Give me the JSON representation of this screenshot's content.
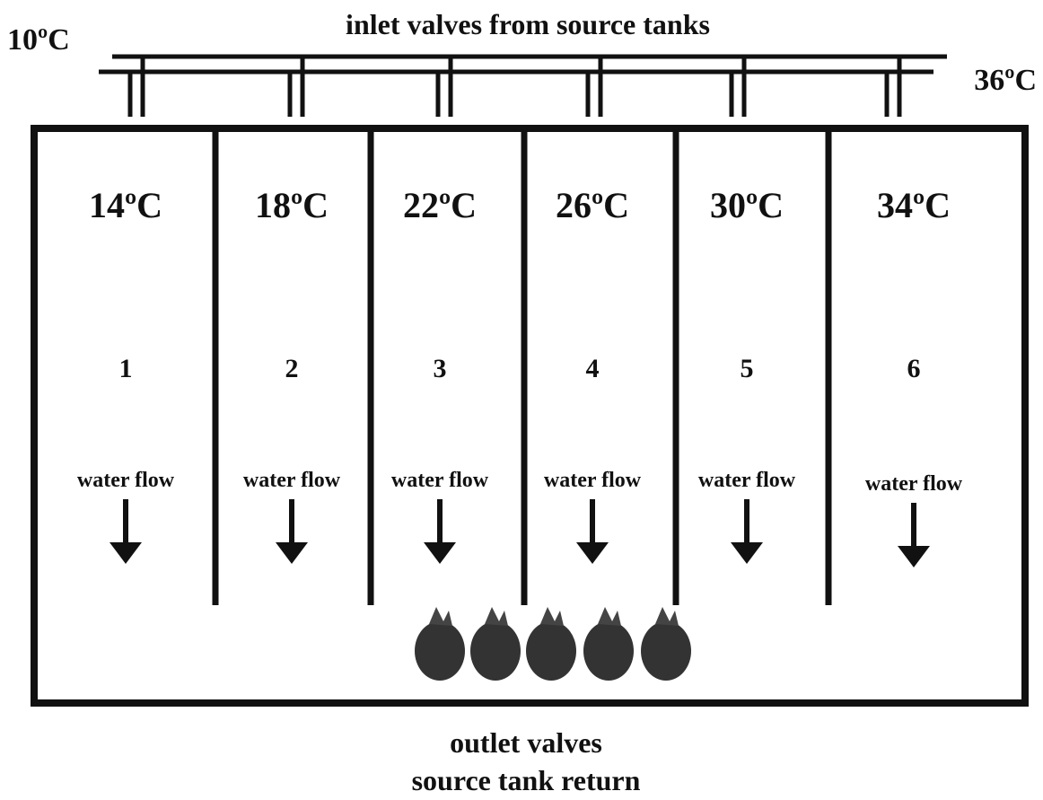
{
  "header": {
    "title": "inlet valves from source tanks",
    "left_temperature": "10ºC",
    "right_temperature": "36ºC"
  },
  "lanes": [
    {
      "temperature": "14ºC",
      "number": "1",
      "flow": "water flow"
    },
    {
      "temperature": "18ºC",
      "number": "2",
      "flow": "water flow"
    },
    {
      "temperature": "22ºC",
      "number": "3",
      "flow": "water flow"
    },
    {
      "temperature": "26ºC",
      "number": "4",
      "flow": "water flow"
    },
    {
      "temperature": "30ºC",
      "number": "5",
      "flow": "water flow"
    },
    {
      "temperature": "34ºC",
      "number": "6",
      "flow": "water flow"
    }
  ],
  "footer": {
    "line1": "outlet valves",
    "line2": "source tank return"
  }
}
